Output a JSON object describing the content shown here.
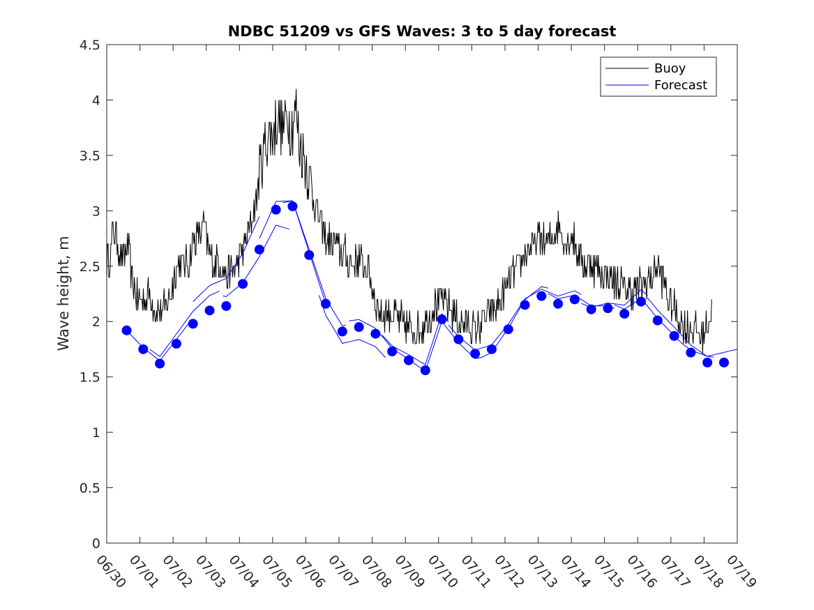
{
  "chart_data": {
    "type": "line",
    "title": "NDBC 51209 vs GFS Waves: 3 to 5 day forecast",
    "xlabel": "",
    "ylabel": "Wave height, m",
    "xlim": [
      0,
      19
    ],
    "ylim": [
      0,
      4.5
    ],
    "x_unit": "days since 06/30",
    "x_ticks": [
      {
        "value": 0,
        "label": "06/30"
      },
      {
        "value": 1,
        "label": "07/01"
      },
      {
        "value": 2,
        "label": "07/02"
      },
      {
        "value": 3,
        "label": "07/03"
      },
      {
        "value": 4,
        "label": "07/04"
      },
      {
        "value": 5,
        "label": "07/05"
      },
      {
        "value": 6,
        "label": "07/06"
      },
      {
        "value": 7,
        "label": "07/07"
      },
      {
        "value": 8,
        "label": "07/08"
      },
      {
        "value": 9,
        "label": "07/09"
      },
      {
        "value": 10,
        "label": "07/10"
      },
      {
        "value": 11,
        "label": "07/11"
      },
      {
        "value": 12,
        "label": "07/12"
      },
      {
        "value": 13,
        "label": "07/13"
      },
      {
        "value": 14,
        "label": "07/14"
      },
      {
        "value": 15,
        "label": "07/15"
      },
      {
        "value": 16,
        "label": "07/16"
      },
      {
        "value": 17,
        "label": "07/17"
      },
      {
        "value": 18,
        "label": "07/18"
      },
      {
        "value": 19,
        "label": "07/19"
      }
    ],
    "y_ticks": [
      {
        "value": 0,
        "label": "0"
      },
      {
        "value": 0.5,
        "label": "0.5"
      },
      {
        "value": 1,
        "label": "1"
      },
      {
        "value": 1.5,
        "label": "1.5"
      },
      {
        "value": 2,
        "label": "2"
      },
      {
        "value": 2.5,
        "label": "2.5"
      },
      {
        "value": 3,
        "label": "3"
      },
      {
        "value": 3.5,
        "label": "3.5"
      },
      {
        "value": 4,
        "label": "4"
      },
      {
        "value": 4.5,
        "label": "4.5"
      }
    ],
    "legend": {
      "position": "top-right",
      "entries": [
        "Buoy",
        "Forecast"
      ]
    },
    "grid": false,
    "colors": {
      "buoy": "#000000",
      "forecast": "#0000ff"
    },
    "buoy_anchors": {
      "x": [
        0,
        0.1,
        0.2,
        0.35,
        0.5,
        0.65,
        0.75,
        0.9,
        1.1,
        1.3,
        1.5,
        1.7,
        1.9,
        2.1,
        2.3,
        2.5,
        2.65,
        2.8,
        2.95,
        3.1,
        3.25,
        3.4,
        3.6,
        3.8,
        4.0,
        4.2,
        4.35,
        4.5,
        4.6,
        4.75,
        4.9,
        5.05,
        5.15,
        5.3,
        5.45,
        5.55,
        5.7,
        5.8,
        5.95,
        6.1,
        6.2,
        6.35,
        6.5,
        6.65,
        6.8,
        7.0,
        7.2,
        7.4,
        7.6,
        7.8,
        7.95,
        8.1,
        8.3,
        8.5,
        8.7,
        8.9,
        9.1,
        9.3,
        9.5,
        9.7,
        9.9,
        10.1,
        10.3,
        10.5,
        10.7,
        10.9,
        11.1,
        11.3,
        11.5,
        11.7,
        11.9,
        12.1,
        12.3,
        12.5,
        12.7,
        12.9,
        13.1,
        13.3,
        13.5,
        13.6,
        13.8,
        14.0,
        14.2,
        14.4,
        14.6,
        14.8,
        15.0,
        15.2,
        15.4,
        15.6,
        15.8,
        16.0,
        16.2,
        16.4,
        16.6,
        16.8,
        17.0,
        17.2,
        17.4,
        17.6,
        17.8,
        17.95,
        18.1,
        18.25
      ],
      "y": [
        2.55,
        2.6,
        2.85,
        2.7,
        2.55,
        2.7,
        2.4,
        2.2,
        2.2,
        2.25,
        2.1,
        2.1,
        2.2,
        2.5,
        2.5,
        2.55,
        2.75,
        2.8,
        2.85,
        2.6,
        2.5,
        2.55,
        2.4,
        2.45,
        2.55,
        2.75,
        2.9,
        3.05,
        3.35,
        3.55,
        3.7,
        3.75,
        3.85,
        3.7,
        3.85,
        3.75,
        3.9,
        3.6,
        3.5,
        3.3,
        3.15,
        3.0,
        2.8,
        2.75,
        2.7,
        2.65,
        2.6,
        2.5,
        2.55,
        2.5,
        2.4,
        2.2,
        2.05,
        2.1,
        2.05,
        2.0,
        1.95,
        1.9,
        1.95,
        2.05,
        2.15,
        2.2,
        2.15,
        2.05,
        1.95,
        1.95,
        1.9,
        2.0,
        2.05,
        2.1,
        2.2,
        2.35,
        2.45,
        2.55,
        2.65,
        2.7,
        2.75,
        2.7,
        2.8,
        2.9,
        2.7,
        2.8,
        2.6,
        2.5,
        2.55,
        2.45,
        2.4,
        2.4,
        2.35,
        2.3,
        2.25,
        2.3,
        2.35,
        2.4,
        2.5,
        2.35,
        2.15,
        2.05,
        1.95,
        1.95,
        1.9,
        1.85,
        2.0,
        2.1
      ]
    },
    "forecast_dots": {
      "x": [
        0.6,
        1.1,
        1.6,
        2.1,
        2.6,
        3.1,
        3.6,
        4.1,
        4.6,
        5.1,
        5.6,
        6.1,
        6.6,
        7.1,
        7.6,
        8.1,
        8.6,
        9.1,
        9.6,
        10.1,
        10.6,
        11.1,
        11.6,
        12.1,
        12.6,
        13.1,
        13.6,
        14.1,
        14.6,
        15.1,
        15.6,
        16.1,
        16.6,
        17.1,
        17.6,
        18.1,
        18.6
      ],
      "y": [
        1.92,
        1.75,
        1.62,
        1.8,
        1.98,
        2.1,
        2.14,
        2.34,
        2.65,
        3.01,
        3.04,
        2.6,
        2.16,
        1.91,
        1.95,
        1.89,
        1.73,
        1.65,
        1.56,
        2.02,
        1.84,
        1.71,
        1.75,
        1.93,
        2.15,
        2.23,
        2.16,
        2.2,
        2.11,
        2.12,
        2.07,
        2.18,
        2.01,
        1.87,
        1.72,
        1.63,
        1.63
      ]
    }
  }
}
